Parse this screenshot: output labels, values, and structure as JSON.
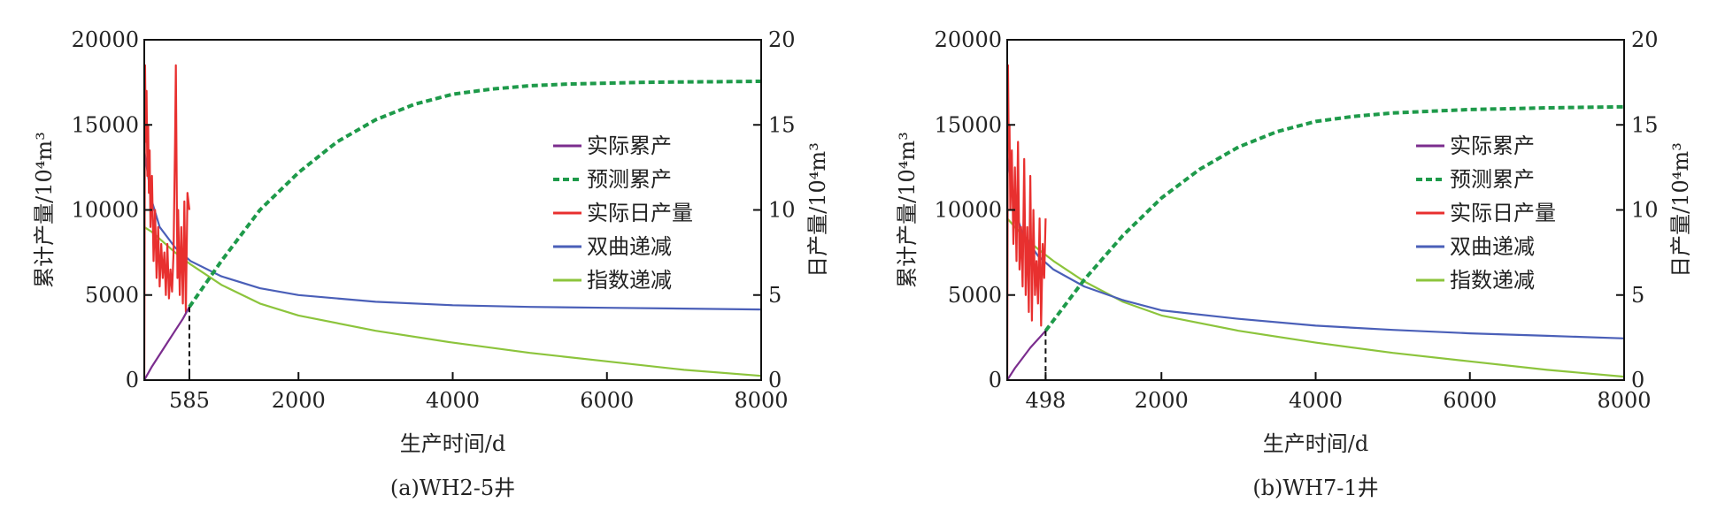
{
  "charts": [
    {
      "caption": "(a)WH2-5井",
      "left_axis_label": "累计产量/10⁴m³",
      "right_axis_label": "日产量/10⁴m³",
      "x_axis_label": "生产时间/d",
      "marker_label": "585",
      "x_ticks": [
        "2000",
        "4000",
        "6000",
        "8000"
      ],
      "left_ticks": [
        "0",
        "5000",
        "10000",
        "15000",
        "20000"
      ],
      "right_ticks": [
        "0",
        "5",
        "10",
        "15",
        "20"
      ],
      "legend": [
        "实际累产",
        "预测累产",
        "实际日产量",
        "双曲递减",
        "指数递减"
      ]
    },
    {
      "caption": "(b)WH7-1井",
      "left_axis_label": "累计产量/10⁴m³",
      "right_axis_label": "日产量/10⁴m³",
      "x_axis_label": "生产时间/d",
      "marker_label": "498",
      "x_ticks": [
        "2000",
        "4000",
        "6000",
        "8000"
      ],
      "left_ticks": [
        "0",
        "5000",
        "10000",
        "15000",
        "20000"
      ],
      "right_ticks": [
        "0",
        "5",
        "10",
        "15",
        "20"
      ],
      "legend": [
        "实际累产",
        "预测累产",
        "实际日产量",
        "双曲递减",
        "指数递减"
      ]
    }
  ],
  "colors": {
    "actual_cum": "#7b2d8e",
    "pred_cum": "#1e9a4a",
    "actual_daily": "#e8302f",
    "hyperbolic": "#4a5fb8",
    "exponential": "#8cc43c"
  },
  "chart_data": [
    {
      "type": "line",
      "title": "(a)WH2-5井",
      "xlabel": "生产时间/d",
      "ylabel": "累计产量/10⁴m³",
      "y2label": "日产量/10⁴m³",
      "xlim": [
        0,
        8000
      ],
      "ylim": [
        0,
        20000
      ],
      "y2lim": [
        0,
        20
      ],
      "marker_x": 585,
      "series": [
        {
          "name": "实际累产",
          "axis": "left",
          "x": [
            0,
            100,
            200,
            300,
            400,
            500,
            585
          ],
          "y": [
            0,
            800,
            1500,
            2200,
            2900,
            3600,
            4300
          ]
        },
        {
          "name": "预测累产",
          "axis": "left",
          "x": [
            585,
            1000,
            1500,
            2000,
            2500,
            3000,
            3500,
            4000,
            4500,
            5000,
            5500,
            6000,
            6500,
            7000,
            7500,
            8000
          ],
          "y": [
            4300,
            7000,
            10000,
            12200,
            14000,
            15300,
            16200,
            16800,
            17100,
            17300,
            17400,
            17450,
            17500,
            17520,
            17540,
            17560
          ]
        },
        {
          "name": "实际日产量",
          "axis": "right",
          "x": [
            0,
            10,
            20,
            30,
            40,
            50,
            60,
            70,
            80,
            100,
            120,
            140,
            160,
            180,
            200,
            220,
            240,
            260,
            280,
            300,
            320,
            340,
            360,
            380,
            400,
            410,
            420,
            430,
            440,
            460,
            480,
            500,
            520,
            540,
            560,
            585
          ],
          "y": [
            0,
            18.5,
            14,
            17,
            12,
            15,
            11,
            13.5,
            9,
            12,
            7,
            10,
            6,
            9,
            5.5,
            8,
            6,
            7.5,
            5,
            8,
            4.8,
            6.5,
            5.2,
            7.5,
            14,
            18.5,
            12,
            6,
            10,
            5,
            9,
            4.5,
            10.5,
            4,
            11,
            10
          ]
        },
        {
          "name": "双曲递减",
          "axis": "right",
          "x": [
            0,
            100,
            200,
            400,
            600,
            1000,
            1500,
            2000,
            3000,
            4000,
            5000,
            6000,
            7000,
            8000
          ],
          "y": [
            13.5,
            10.5,
            9,
            7.8,
            7,
            6.1,
            5.4,
            5,
            4.6,
            4.4,
            4.3,
            4.25,
            4.2,
            4.15
          ]
        },
        {
          "name": "指数递减",
          "axis": "right",
          "x": [
            0,
            100,
            200,
            400,
            600,
            1000,
            1500,
            2000,
            3000,
            4000,
            5000,
            6000,
            7000,
            8000
          ],
          "y": [
            9,
            8.7,
            8.3,
            7.5,
            6.8,
            5.6,
            4.5,
            3.8,
            2.9,
            2.2,
            1.6,
            1.1,
            0.6,
            0.25
          ]
        }
      ]
    },
    {
      "type": "line",
      "title": "(b)WH7-1井",
      "xlabel": "生产时间/d",
      "ylabel": "累计产量/10⁴m³",
      "y2label": "日产量/10⁴m³",
      "xlim": [
        0,
        8000
      ],
      "ylim": [
        0,
        20000
      ],
      "y2lim": [
        0,
        20
      ],
      "marker_x": 498,
      "series": [
        {
          "name": "实际累产",
          "axis": "left",
          "x": [
            0,
            100,
            200,
            300,
            400,
            498
          ],
          "y": [
            0,
            700,
            1300,
            1900,
            2400,
            2900
          ]
        },
        {
          "name": "预测累产",
          "axis": "left",
          "x": [
            498,
            1000,
            1500,
            2000,
            2500,
            3000,
            3500,
            4000,
            4500,
            5000,
            5500,
            6000,
            6500,
            7000,
            7500,
            8000
          ],
          "y": [
            2900,
            5900,
            8500,
            10700,
            12400,
            13700,
            14600,
            15200,
            15500,
            15700,
            15800,
            15900,
            15950,
            16000,
            16030,
            16060
          ]
        },
        {
          "name": "实际日产量",
          "axis": "right",
          "x": [
            0,
            10,
            20,
            30,
            40,
            60,
            80,
            100,
            120,
            140,
            160,
            180,
            200,
            220,
            240,
            260,
            280,
            300,
            320,
            340,
            360,
            380,
            400,
            420,
            440,
            460,
            480,
            498
          ],
          "y": [
            0,
            18.5,
            14,
            15,
            10,
            13.5,
            8,
            12.5,
            7,
            14,
            6.5,
            9,
            5.5,
            13,
            5,
            9,
            4,
            12,
            3.5,
            10,
            5,
            7,
            4.5,
            9.5,
            3.2,
            8,
            6,
            9.5
          ]
        },
        {
          "name": "双曲递减",
          "axis": "right",
          "x": [
            0,
            100,
            200,
            400,
            600,
            1000,
            1500,
            2000,
            3000,
            4000,
            5000,
            6000,
            7000,
            8000
          ],
          "y": [
            13.3,
            10,
            8.6,
            7.3,
            6.5,
            5.5,
            4.7,
            4.1,
            3.6,
            3.2,
            2.95,
            2.75,
            2.6,
            2.45
          ]
        },
        {
          "name": "指数递减",
          "axis": "right",
          "x": [
            0,
            100,
            200,
            400,
            600,
            1000,
            1500,
            2000,
            3000,
            4000,
            5000,
            6000,
            7000,
            8000
          ],
          "y": [
            9.5,
            9,
            8.5,
            7.7,
            7,
            5.8,
            4.6,
            3.8,
            2.9,
            2.2,
            1.6,
            1.1,
            0.6,
            0.2
          ]
        }
      ]
    }
  ]
}
